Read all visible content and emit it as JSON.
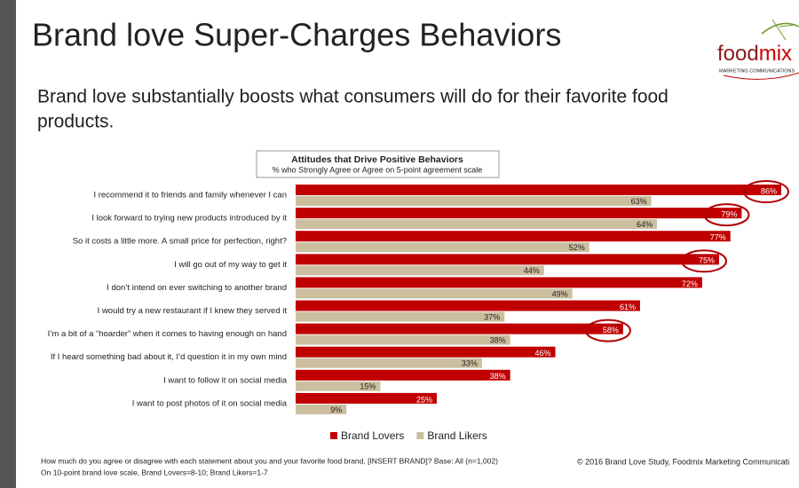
{
  "header": {
    "title": "Brand love Super-Charges Behaviors",
    "subtitle_lines": [
      "Brand love substantially boosts what consumers will do for their favorite food",
      "products."
    ],
    "logo": {
      "part1": "food",
      "part2": "mix",
      "tagline": "MARKETING COMMUNICATIONS"
    }
  },
  "chart_data": {
    "type": "hbar",
    "title": "Attitudes that Drive Positive Behaviors",
    "subtitle": "% who Strongly Agree or Agree on 5-point agreement scale",
    "categories": [
      "I recommend it to friends and family whenever I can",
      "I look forward to trying new products introduced by it",
      "So it costs a little more. A small price for perfection, right?",
      "I will go out of my way to get it",
      "I don’t intend on ever switching to another brand",
      "I would try a new restaurant if I knew they served it",
      "I’m a bit of a “hoarder” when it comes to having enough on hand",
      "If I heard something bad about it, I’d question it in my own mind",
      "I want to follow it on social media",
      "I want to post photos of it on social media"
    ],
    "series": [
      {
        "name": "Brand Lovers",
        "color": "#c00000",
        "values": [
          86,
          79,
          77,
          75,
          72,
          61,
          58,
          46,
          38,
          25
        ],
        "value_labels": [
          "86%",
          "79%",
          "77%",
          "75%",
          "72%",
          "61%",
          "58%",
          "46%",
          "38%",
          "25%"
        ]
      },
      {
        "name": "Brand Likers",
        "color": "#cbbf9f",
        "values": [
          63,
          64,
          52,
          44,
          49,
          37,
          38,
          33,
          15,
          9
        ],
        "value_labels": [
          "63%",
          "64%",
          "52%",
          "44%",
          "49%",
          "37%",
          "38%",
          "33%",
          "15%",
          "9%"
        ]
      }
    ]
  },
  "footer": {
    "note_lines": [
      "How much do you agree or disagree with each statement about you and your favorite food brand, [INSERT BRAND]? Base: All (n=1,002)",
      "On 10-point brand love scale, Brand Lovers=8-10; Brand Likers=1-7"
    ],
    "copyright": "© 2016 Brand Love Study, Foodmix Marketing Communicati"
  }
}
